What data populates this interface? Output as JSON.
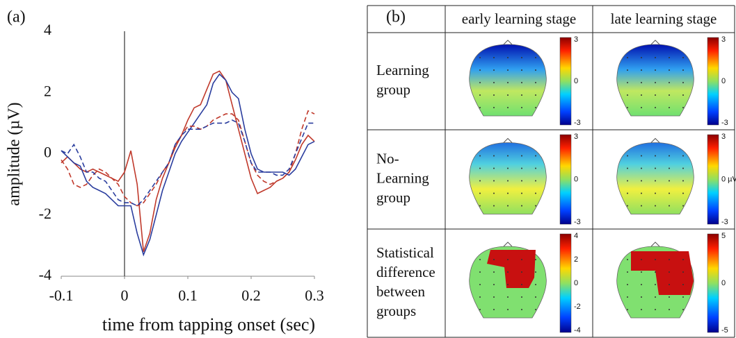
{
  "chart_data": {
    "type": "line",
    "label": "(a)",
    "xlabel": "time from tapping onset (sec)",
    "ylabel": "amplitude (µV)",
    "x": [
      -0.1,
      -0.09,
      -0.08,
      -0.07,
      -0.06,
      -0.05,
      -0.04,
      -0.03,
      -0.02,
      -0.01,
      0,
      0.01,
      0.02,
      0.03,
      0.04,
      0.05,
      0.06,
      0.07,
      0.08,
      0.09,
      0.1,
      0.11,
      0.12,
      0.13,
      0.14,
      0.15,
      0.16,
      0.17,
      0.18,
      0.19,
      0.2,
      0.21,
      0.22,
      0.23,
      0.24,
      0.25,
      0.26,
      0.27,
      0.28,
      0.29,
      0.3
    ],
    "series": [
      {
        "color": "#c0392b",
        "dash": false,
        "values": [
          -0.3,
          -0.1,
          -0.3,
          -0.5,
          -0.6,
          -0.5,
          -0.6,
          -0.7,
          -0.8,
          -0.9,
          -0.6,
          0.1,
          -1.0,
          -3.2,
          -2.6,
          -1.5,
          -0.8,
          -0.3,
          0.2,
          0.6,
          1.1,
          1.5,
          1.6,
          2.1,
          2.6,
          2.7,
          2.4,
          1.6,
          0.8,
          0.0,
          -0.8,
          -1.3,
          -1.2,
          -1.1,
          -0.9,
          -0.8,
          -0.6,
          -0.2,
          0.3,
          0.6,
          0.4
        ]
      },
      {
        "color": "#2a3d9e",
        "dash": false,
        "values": [
          0.1,
          -0.1,
          -0.3,
          -0.4,
          -0.9,
          -1.1,
          -1.2,
          -1.3,
          -1.5,
          -1.7,
          -1.7,
          -1.7,
          -2.6,
          -3.3,
          -2.8,
          -2.0,
          -1.2,
          -0.6,
          0.0,
          0.4,
          0.7,
          1.0,
          1.3,
          1.6,
          2.3,
          2.6,
          2.4,
          2.0,
          1.8,
          0.8,
          0.0,
          -0.5,
          -0.6,
          -0.6,
          -0.6,
          -0.6,
          -0.7,
          -0.5,
          -0.1,
          0.3,
          0.4
        ]
      },
      {
        "color": "#c0392b",
        "dash": true,
        "values": [
          -0.2,
          -0.5,
          -1.0,
          -1.1,
          -1.0,
          -0.7,
          -0.5,
          -0.6,
          -0.8,
          -1.0,
          -1.4,
          -1.6,
          -1.7,
          -1.6,
          -1.3,
          -1.0,
          -0.6,
          -0.3,
          0.3,
          0.6,
          0.9,
          0.9,
          0.8,
          0.9,
          1.1,
          1.2,
          1.3,
          1.3,
          1.1,
          0.4,
          -0.3,
          -0.7,
          -0.9,
          -1.0,
          -0.9,
          -0.8,
          -0.6,
          0.0,
          0.8,
          1.4,
          1.3
        ]
      },
      {
        "color": "#2a3d9e",
        "dash": true,
        "values": [
          0.1,
          0.0,
          0.3,
          -0.1,
          -0.6,
          -0.6,
          -0.8,
          -0.9,
          -1.2,
          -1.5,
          -1.6,
          -1.6,
          -1.7,
          -1.5,
          -1.2,
          -0.9,
          -0.6,
          -0.3,
          0.3,
          0.6,
          0.8,
          0.8,
          0.8,
          0.9,
          1.0,
          1.0,
          1.0,
          1.1,
          1.0,
          0.4,
          -0.3,
          -0.6,
          -0.6,
          -0.6,
          -0.7,
          -0.7,
          -0.5,
          0.0,
          0.5,
          1.0,
          1.0
        ]
      }
    ],
    "xlim": [
      -0.1,
      0.3
    ],
    "ylim": [
      -4,
      4
    ],
    "xticks": [
      -0.1,
      0,
      0.1,
      0.2,
      0.3
    ],
    "yticks": [
      -4,
      -2,
      0,
      2,
      4
    ],
    "vline": 0
  },
  "table": {
    "label": "(b)",
    "columns": [
      "early learning stage",
      "late learning stage"
    ],
    "rows": [
      {
        "label": [
          "Learning",
          "group"
        ],
        "colorbars": [
          [
            "3",
            "0",
            "-3"
          ],
          [
            "3",
            "0",
            "-3"
          ]
        ]
      },
      {
        "label": [
          "No-",
          "Learning",
          "group"
        ],
        "colorbars": [
          [
            "3",
            "0",
            "-3"
          ],
          [
            "3",
            "0 µV",
            "-3"
          ]
        ]
      },
      {
        "label": [
          "Statistical",
          "difference",
          "between",
          "groups"
        ],
        "colorbars": [
          [
            "4",
            "2",
            "0",
            "-2",
            "-4"
          ],
          [
            "5",
            "0",
            "-5"
          ]
        ]
      }
    ]
  }
}
